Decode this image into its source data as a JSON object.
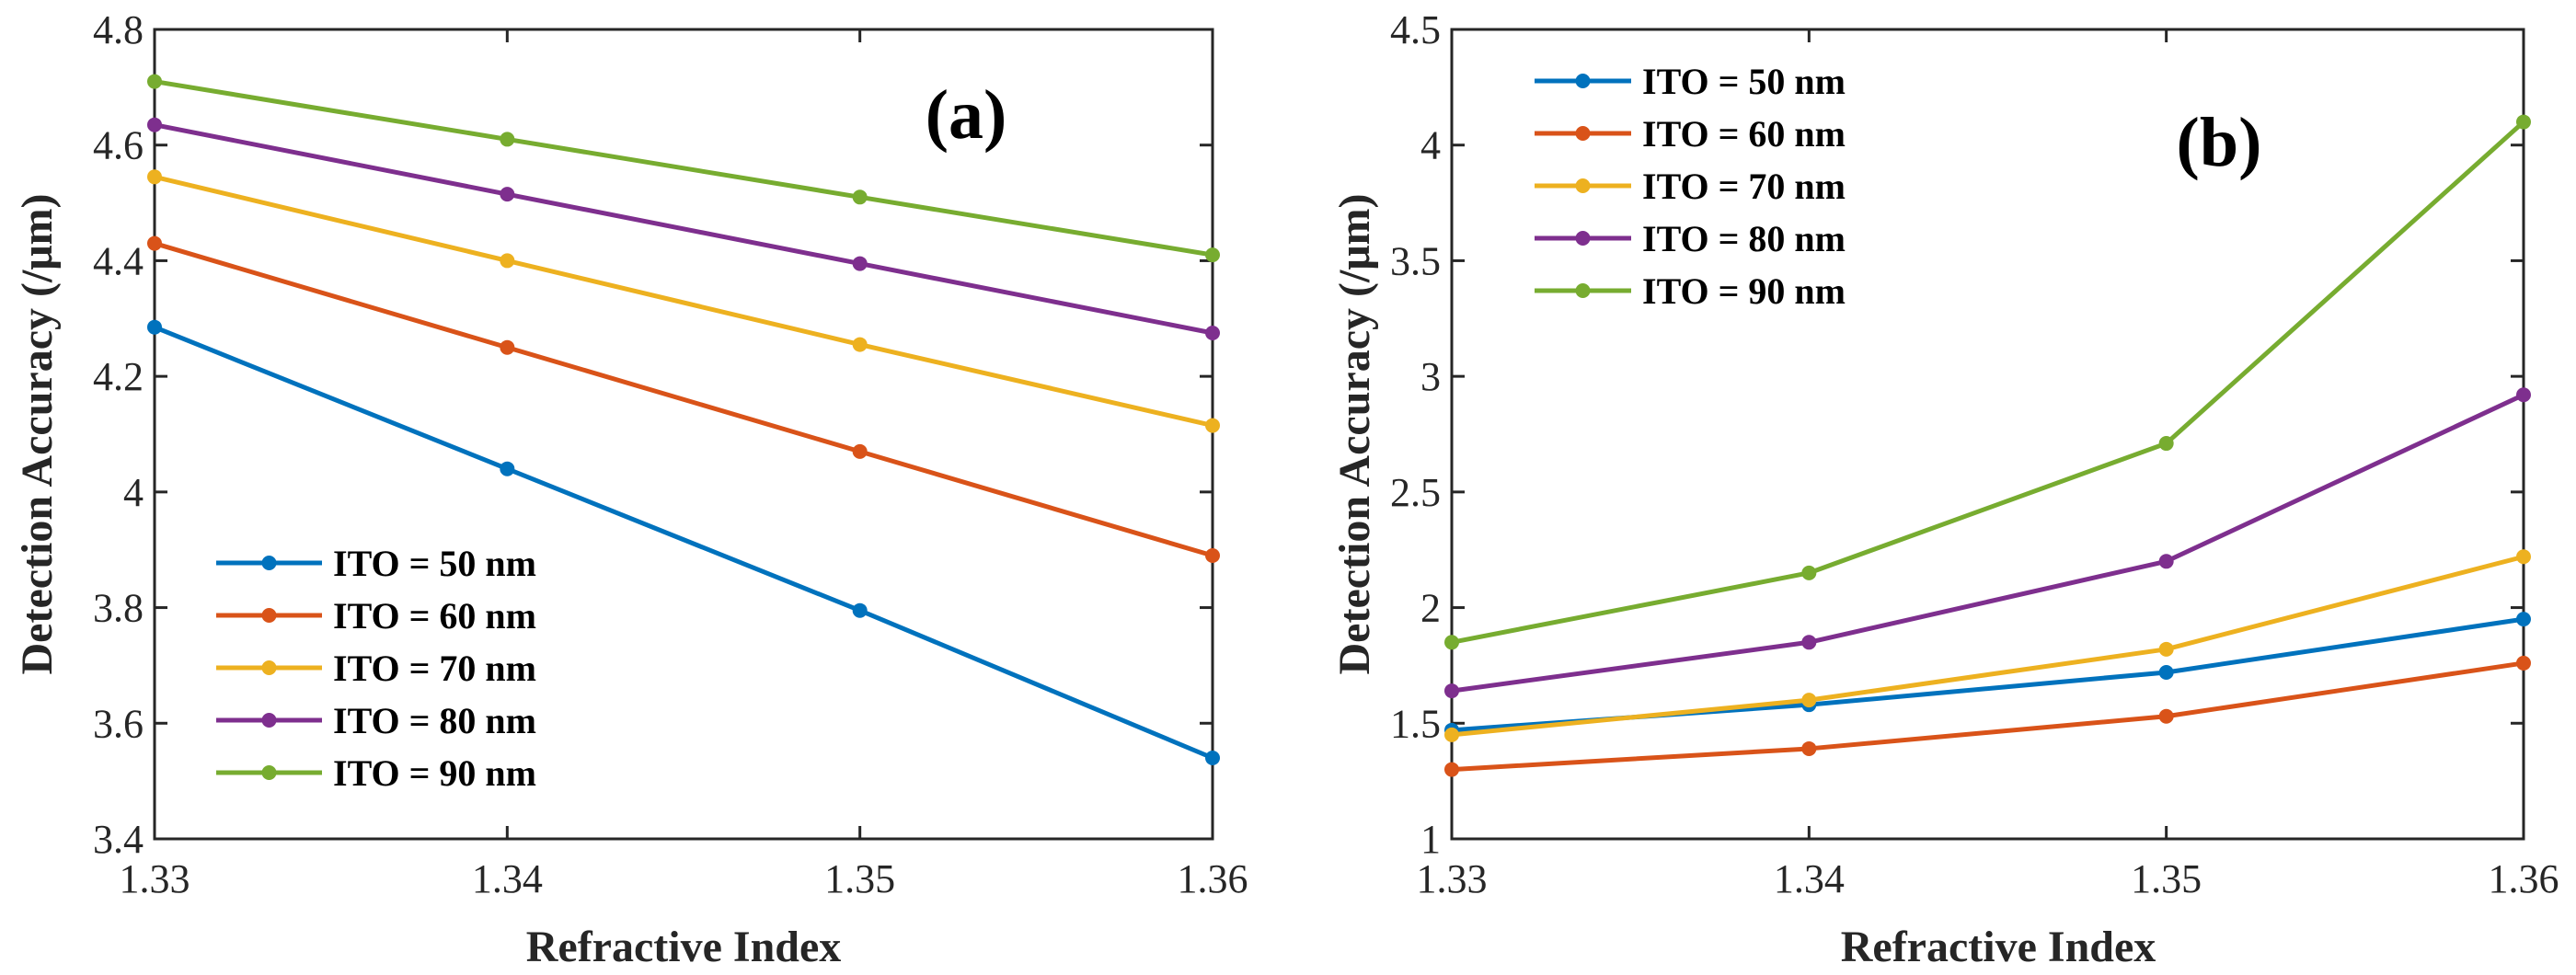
{
  "chart_data": [
    {
      "type": "line",
      "panel_label": "(a)",
      "xlabel": "Refractive Index",
      "ylabel": "Detection Accuracy (/μm)",
      "x": [
        1.33,
        1.34,
        1.35,
        1.36
      ],
      "xtick_labels": [
        "1.33",
        "1.34",
        "1.35",
        "1.36"
      ],
      "xlim": [
        1.33,
        1.36
      ],
      "ylim": [
        3.4,
        4.8
      ],
      "yticks": [
        3.4,
        3.6,
        3.8,
        4.0,
        4.2,
        4.4,
        4.6,
        4.8
      ],
      "ytick_labels": [
        "3.4",
        "3.6",
        "3.8",
        "4",
        "4.2",
        "4.4",
        "4.6",
        "4.8"
      ],
      "legend_location": "lower-left",
      "series": [
        {
          "name": "ITO = 50 nm",
          "color": "#0072BD",
          "values": [
            4.285,
            4.04,
            3.795,
            3.54
          ]
        },
        {
          "name": "ITO = 60 nm",
          "color": "#D95319",
          "values": [
            4.43,
            4.25,
            4.07,
            3.89
          ]
        },
        {
          "name": "ITO = 70 nm",
          "color": "#EDB120",
          "values": [
            4.545,
            4.4,
            4.255,
            4.115
          ]
        },
        {
          "name": "ITO = 80 nm",
          "color": "#7E2F8E",
          "values": [
            4.635,
            4.515,
            4.395,
            4.275
          ]
        },
        {
          "name": "ITO = 90 nm",
          "color": "#77AC30",
          "values": [
            4.71,
            4.61,
            4.51,
            4.41
          ]
        }
      ]
    },
    {
      "type": "line",
      "panel_label": "(b)",
      "xlabel": "Refractive Index",
      "ylabel": "Detection Accuracy (/μm)",
      "x": [
        1.33,
        1.34,
        1.35,
        1.36
      ],
      "xtick_labels": [
        "1.33",
        "1.34",
        "1.35",
        "1.36"
      ],
      "xlim": [
        1.33,
        1.36
      ],
      "ylim": [
        1.0,
        4.5
      ],
      "yticks": [
        1.0,
        1.5,
        2.0,
        2.5,
        3.0,
        3.5,
        4.0,
        4.5
      ],
      "ytick_labels": [
        "1",
        "1.5",
        "2",
        "2.5",
        "3",
        "3.5",
        "4",
        "4.5"
      ],
      "legend_location": "top-left",
      "series": [
        {
          "name": "ITO = 50 nm",
          "color": "#0072BD",
          "values": [
            1.47,
            1.58,
            1.72,
            1.95
          ]
        },
        {
          "name": "ITO = 60 nm",
          "color": "#D95319",
          "values": [
            1.3,
            1.39,
            1.53,
            1.76
          ]
        },
        {
          "name": "ITO = 70 nm",
          "color": "#EDB120",
          "values": [
            1.45,
            1.6,
            1.82,
            2.22
          ]
        },
        {
          "name": "ITO = 80 nm",
          "color": "#7E2F8E",
          "values": [
            1.64,
            1.85,
            2.2,
            2.92
          ]
        },
        {
          "name": "ITO = 90 nm",
          "color": "#77AC30",
          "values": [
            1.85,
            2.15,
            2.71,
            4.1
          ]
        }
      ]
    }
  ]
}
